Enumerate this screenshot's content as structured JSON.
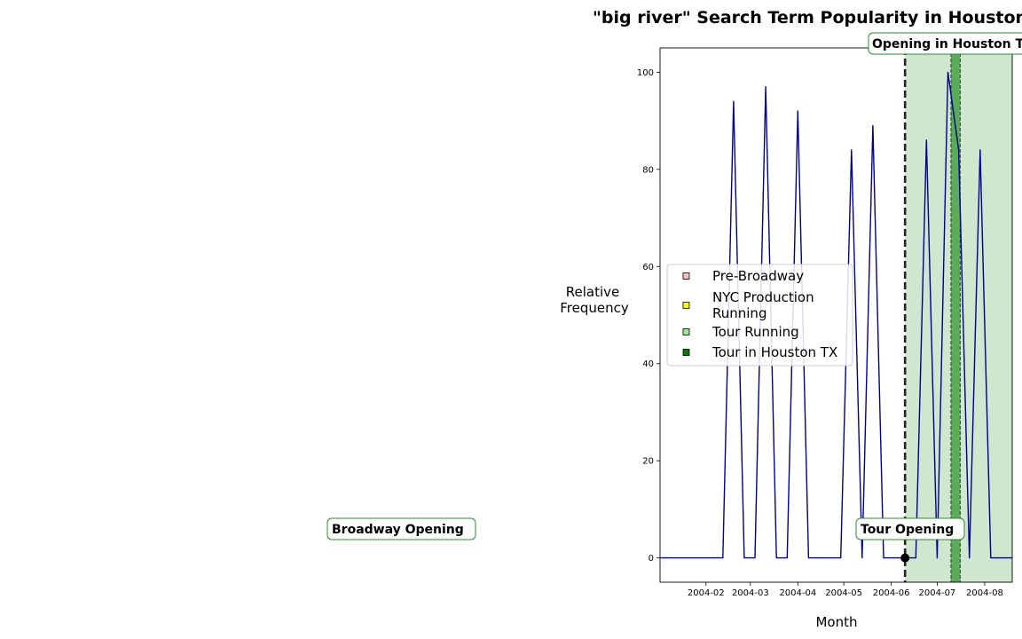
{
  "chart_data": {
    "type": "line",
    "title": "\"big river\" Search Term Popularity in Houston",
    "xlabel": "Month",
    "ylabel_lines": [
      "Relative",
      "Frequency"
    ],
    "ylim": [
      -5,
      105
    ],
    "yticks": [
      0,
      20,
      40,
      60,
      80,
      100
    ],
    "xlim": [
      "2004-01-02",
      "2004-08-19"
    ],
    "xticks": [
      {
        "date": "2004-02-01",
        "label": "2004-02"
      },
      {
        "date": "2004-03-01",
        "label": "2004-03"
      },
      {
        "date": "2004-04-01",
        "label": "2004-04"
      },
      {
        "date": "2004-05-01",
        "label": "2004-05"
      },
      {
        "date": "2004-06-01",
        "label": "2004-06"
      },
      {
        "date": "2004-07-01",
        "label": "2004-07"
      },
      {
        "date": "2004-08-01",
        "label": "2004-08"
      }
    ],
    "series": [
      {
        "color": "#00008b",
        "points": [
          [
            "2004-01-01",
            0
          ],
          [
            "2004-02-12",
            0
          ],
          [
            "2004-02-19",
            94
          ],
          [
            "2004-02-26",
            0
          ],
          [
            "2004-03-04",
            0
          ],
          [
            "2004-03-11",
            97
          ],
          [
            "2004-03-18",
            0
          ],
          [
            "2004-03-25",
            0
          ],
          [
            "2004-04-01",
            92
          ],
          [
            "2004-04-08",
            0
          ],
          [
            "2004-04-29",
            0
          ],
          [
            "2004-05-06",
            84
          ],
          [
            "2004-05-13",
            0
          ],
          [
            "2004-05-20",
            89
          ],
          [
            "2004-05-27",
            0
          ],
          [
            "2004-06-10",
            0
          ],
          [
            "2004-06-17",
            0
          ],
          [
            "2004-06-24",
            86
          ],
          [
            "2004-07-01",
            0
          ],
          [
            "2004-07-08",
            100
          ],
          [
            "2004-07-15",
            84
          ],
          [
            "2004-07-22",
            0
          ],
          [
            "2004-07-29",
            84
          ],
          [
            "2004-08-05",
            0
          ],
          [
            "2004-08-19",
            0
          ]
        ]
      }
    ],
    "spans": [
      {
        "legend": "Tour Running",
        "start": "2004-06-10",
        "end": "2004-08-19",
        "color": "#cfe6cf"
      },
      {
        "legend": "Tour in Houston TX",
        "start": "2004-07-10",
        "end": "2004-07-16",
        "color": "#5aab5a"
      }
    ],
    "vlines": [
      {
        "date": "2004-06-10",
        "style": "dashed-thick",
        "color": "#222222"
      },
      {
        "date": "2004-07-10",
        "style": "dashed-thin",
        "color": "#222222"
      },
      {
        "date": "2004-07-16",
        "style": "dashed-thin",
        "color": "#222222"
      }
    ],
    "markers": [
      {
        "date": "2004-06-10",
        "value": 0,
        "color": "#000000"
      }
    ],
    "legend": {
      "placement": "center",
      "items": [
        {
          "label_lines": [
            "Pre-Broadway"
          ],
          "color": "#f4c2c2"
        },
        {
          "label_lines": [
            "NYC Production",
            "Running"
          ],
          "color": "#ffff00"
        },
        {
          "label_lines": [
            "Tour Running"
          ],
          "color": "#90ee90"
        },
        {
          "label_lines": [
            "Tour in Houston TX"
          ],
          "color": "#008000"
        }
      ]
    },
    "annotations": [
      {
        "text": "Opening in Houston TX",
        "border_color": "#2e8b2e"
      },
      {
        "text": "Tour Opening",
        "border_color": "#2e8b2e"
      },
      {
        "text": "Broadway Opening",
        "border_color": "#2e8b2e"
      }
    ]
  }
}
